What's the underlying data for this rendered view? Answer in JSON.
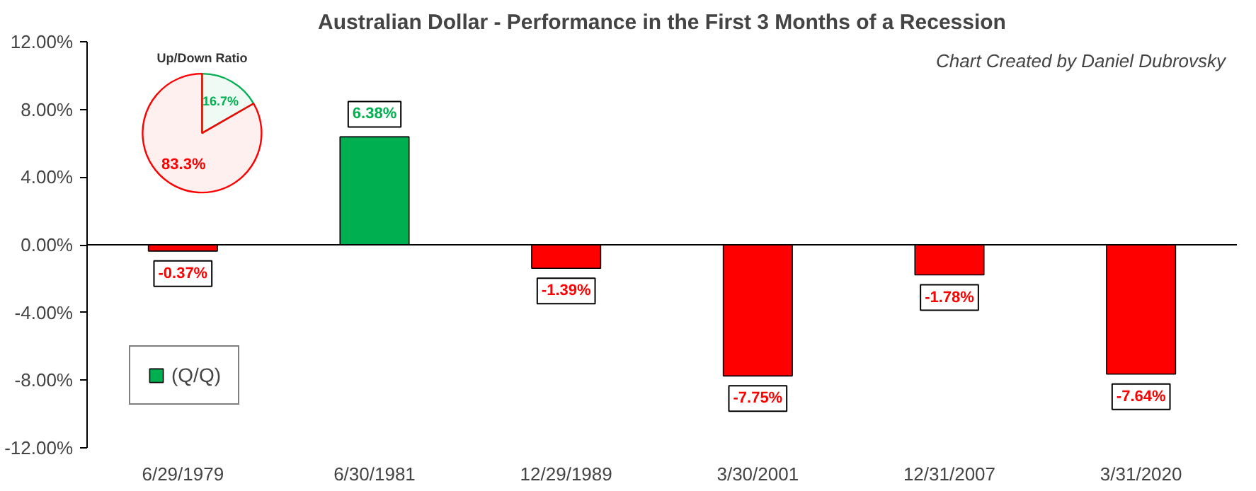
{
  "chart_data": [
    {
      "type": "bar",
      "title": "Australian Dollar - Performance in the First 3 Months of a Recession",
      "categories": [
        "6/29/1979",
        "6/30/1981",
        "12/29/1989",
        "3/30/2001",
        "12/31/2007",
        "3/31/2020"
      ],
      "series": [
        {
          "name": "(Q/Q)",
          "color": "#00b050",
          "colors": [
            "#ff0000",
            "#00b050",
            "#ff0000",
            "#ff0000",
            "#ff0000",
            "#ff0000"
          ],
          "values": [
            -0.37,
            6.38,
            -1.39,
            -7.75,
            -1.78,
            -7.64
          ],
          "value_labels": [
            "-0.37%",
            "6.38%",
            "-1.39%",
            "-7.75%",
            "-1.78%",
            "-7.64%"
          ]
        }
      ],
      "ylim": [
        -12,
        12
      ],
      "yticks": [
        {
          "value": -12,
          "label": "-12.00%"
        },
        {
          "value": -8,
          "label": "-8.00%"
        },
        {
          "value": -4,
          "label": "-4.00%"
        },
        {
          "value": 0,
          "label": "0.00%"
        },
        {
          "value": 4,
          "label": "4.00%"
        },
        {
          "value": 8,
          "label": "8.00%"
        },
        {
          "value": 12,
          "label": "12.00%"
        }
      ],
      "grid": false,
      "legend": "bottom left",
      "ref_lines": [
        {
          "axis": "y",
          "value": 0,
          "color": "#000000"
        }
      ],
      "annotations": [
        "Chart Created by Daniel Dubrovsky"
      ]
    },
    {
      "type": "pie",
      "title": "Up/Down Ratio",
      "categories": [
        null,
        null
      ],
      "values": [
        16.7,
        83.3
      ],
      "colors": [
        "#00b050",
        "#ff0000"
      ],
      "value_labels": [
        "16.7%",
        "83.3%"
      ]
    }
  ]
}
